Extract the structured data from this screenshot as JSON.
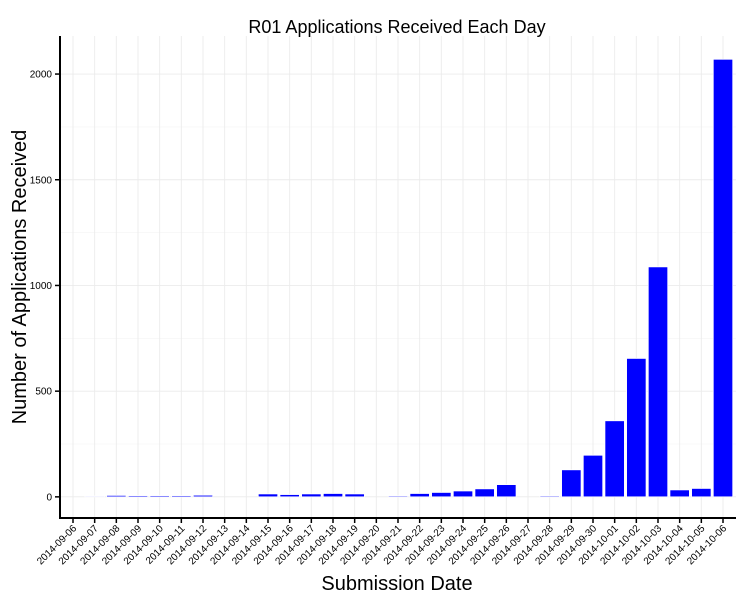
{
  "chart_data": {
    "type": "bar",
    "title": "R01 Applications Received Each Day",
    "xlabel": "Submission Date",
    "ylabel": "Number of Applications Received",
    "categories": [
      "2014-09-06",
      "2014-09-07",
      "2014-09-08",
      "2014-09-09",
      "2014-09-10",
      "2014-09-11",
      "2014-09-12",
      "2014-09-13",
      "2014-09-14",
      "2014-09-15",
      "2014-09-16",
      "2014-09-17",
      "2014-09-18",
      "2014-09-19",
      "2014-09-20",
      "2014-09-21",
      "2014-09-22",
      "2014-09-23",
      "2014-09-24",
      "2014-09-25",
      "2014-09-26",
      "2014-09-27",
      "2014-09-28",
      "2014-09-29",
      "2014-09-30",
      "2014-10-01",
      "2014-10-02",
      "2014-10-03",
      "2014-10-04",
      "2014-10-05",
      "2014-10-06"
    ],
    "values": [
      0,
      4,
      7,
      6,
      6,
      6,
      8,
      0,
      0,
      14,
      11,
      14,
      16,
      14,
      0,
      5,
      16,
      21,
      28,
      38,
      58,
      0,
      5,
      128,
      197,
      360,
      655,
      1088,
      33,
      40,
      2070
    ],
    "ylim": [
      -100,
      2180
    ],
    "yticks": [
      0,
      500,
      1000,
      1500,
      2000
    ],
    "grid": true,
    "bar_color": "#0000ff",
    "bar_outline": "#ffffff"
  }
}
